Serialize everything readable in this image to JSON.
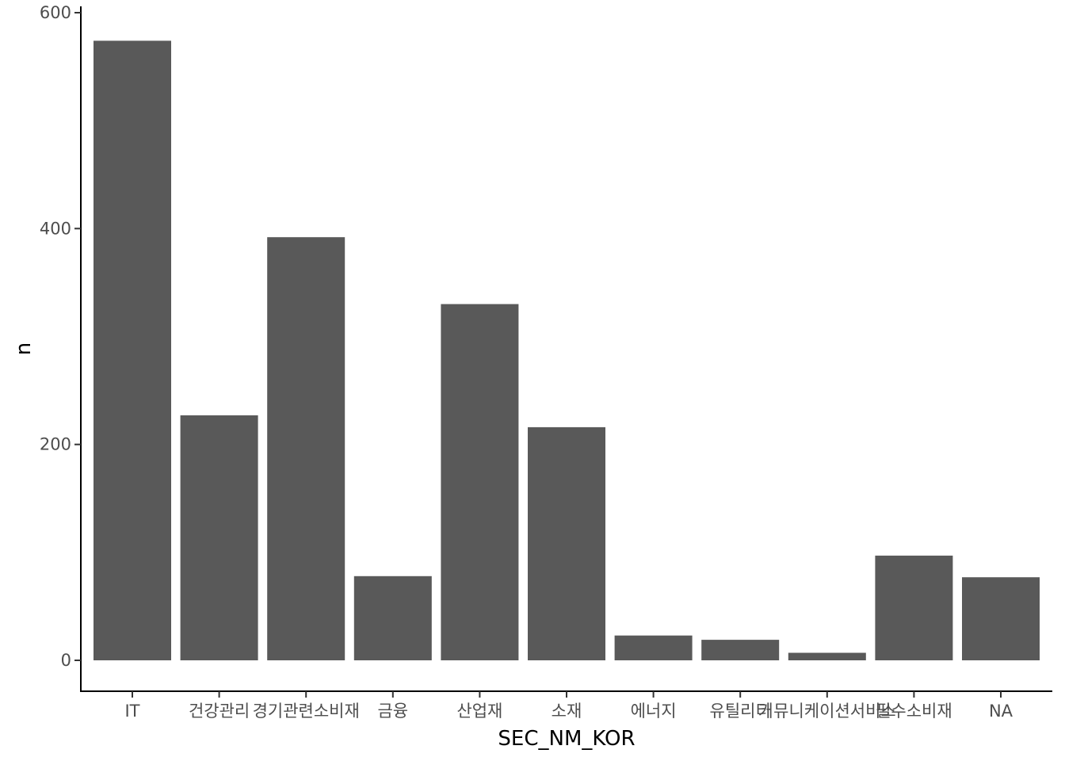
{
  "chart_data": {
    "type": "bar",
    "categories": [
      "IT",
      "건강관리",
      "경기관련소비재",
      "금융",
      "산업재",
      "소재",
      "에너지",
      "유틸리티",
      "커뮤니케이션서비스",
      "필수소비재",
      "NA"
    ],
    "values": [
      574,
      227,
      392,
      78,
      330,
      216,
      23,
      19,
      7,
      97,
      77
    ],
    "xlabel": "SEC_NM_KOR",
    "ylabel": "n",
    "ylim": [
      0,
      600
    ],
    "yticks": [
      0,
      200,
      400,
      600
    ],
    "bar_color": "#595959",
    "grid": false,
    "legend": "none"
  }
}
